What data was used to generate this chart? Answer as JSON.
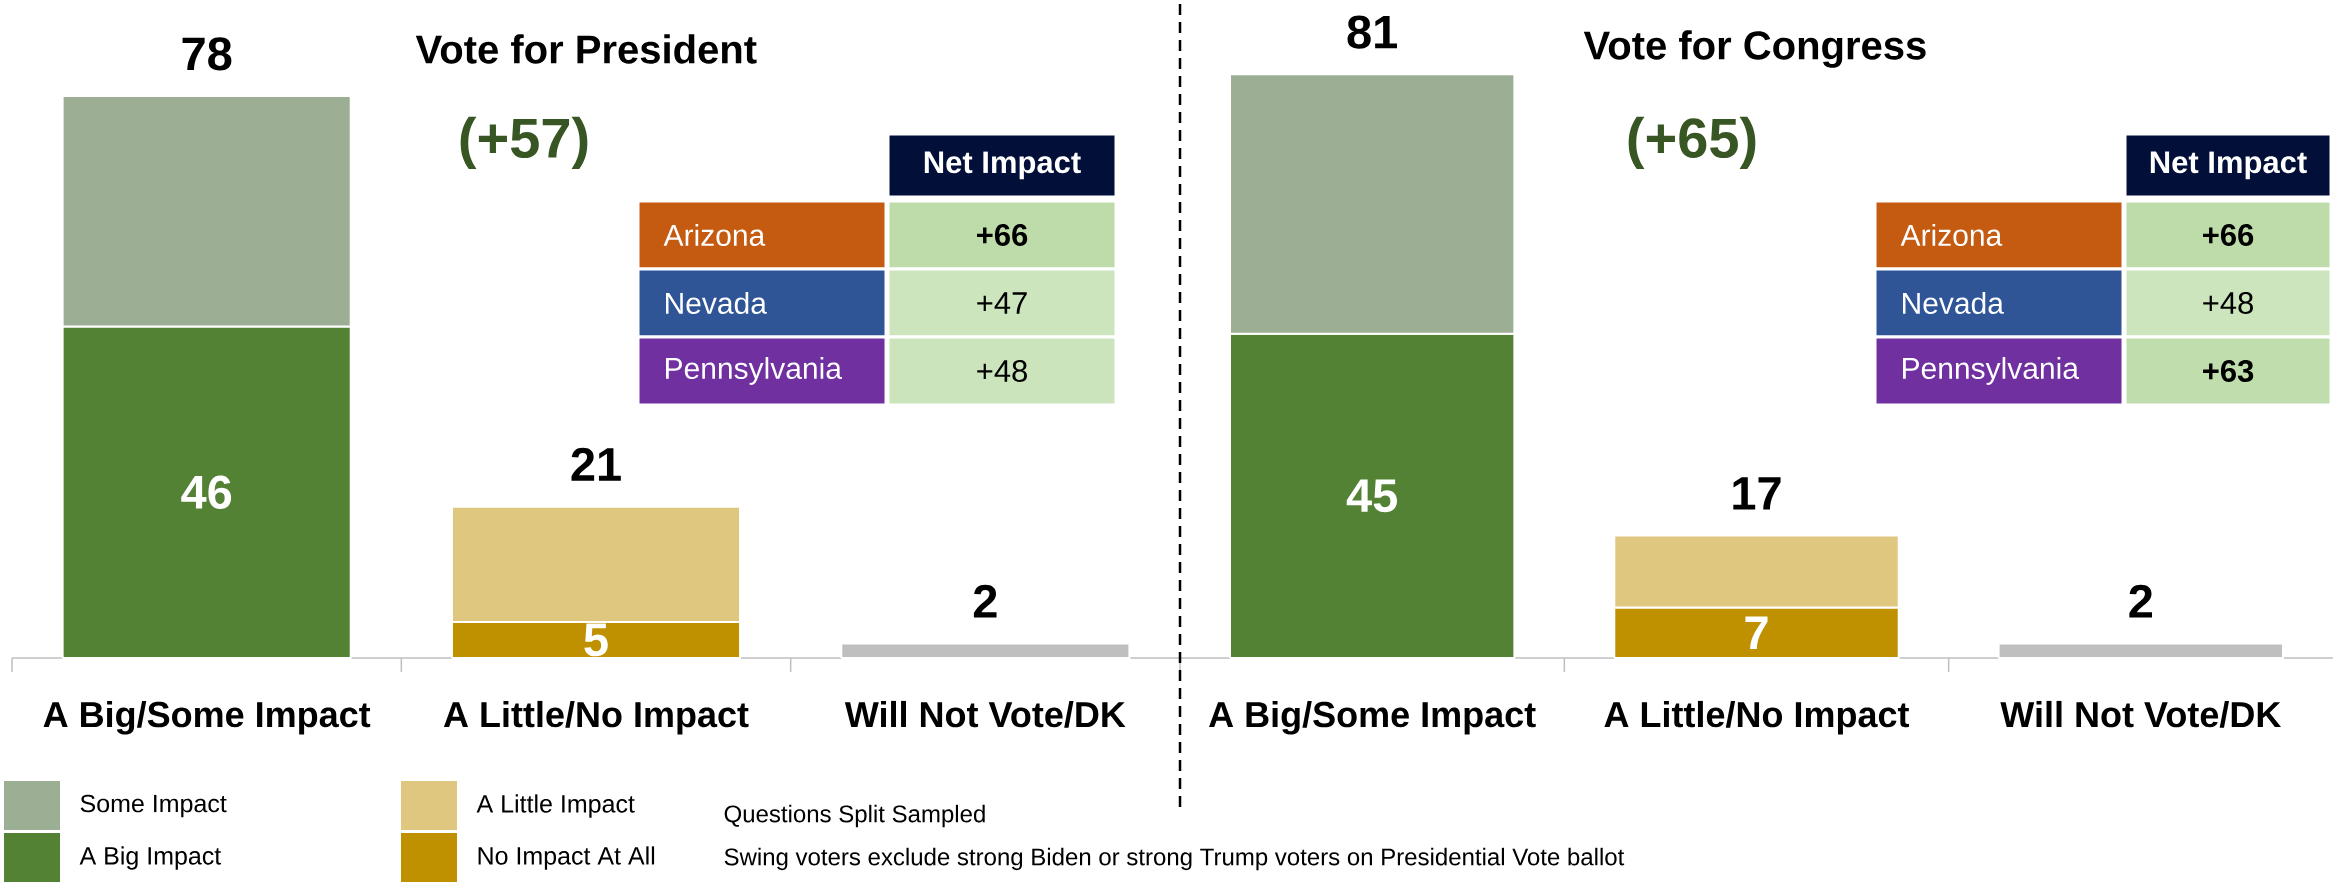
{
  "chart_data": [
    {
      "type": "bar",
      "title": "Vote for President",
      "categories": [
        "A Big/Some Impact",
        "A Little/No Impact",
        "Will Not Vote/DK"
      ],
      "stacked": true,
      "series": [
        {
          "name": "A Big Impact",
          "color": "#548235",
          "values": [
            46,
            null,
            null
          ],
          "value_labels": [
            "46",
            null,
            null
          ]
        },
        {
          "name": "Some Impact",
          "color": "#9caf94",
          "values": [
            32,
            null,
            null
          ]
        },
        {
          "name": "No Impact At All",
          "color": "#bf9000",
          "values": [
            null,
            5,
            null
          ],
          "value_labels": [
            null,
            "5",
            null
          ]
        },
        {
          "name": "A Little Impact",
          "color": "#dfc77f",
          "values": [
            null,
            16,
            null
          ]
        },
        {
          "color": "#bfbfbf",
          "values": [
            null,
            null,
            2
          ]
        }
      ],
      "totals": [
        "78",
        "21",
        "2"
      ],
      "tick_labels": "x",
      "legend": "bottom",
      "annotations": [
        "(+57)",
        "Questions Split Sampled",
        "Swing voters exclude strong Biden or strong Trump voters on Presidential Vote ballot"
      ]
    },
    {
      "type": "heatmap",
      "categories": [
        "Net Impact"
      ],
      "y_categories": [
        "Arizona",
        "Nevada",
        "Pennsylvania"
      ],
      "cells": [
        [
          66
        ],
        [
          47
        ],
        [
          48
        ]
      ],
      "cell_labels": [
        [
          "**+66**"
        ],
        [
          "+47"
        ],
        [
          "+48"
        ]
      ]
    },
    {
      "type": "bar",
      "title": "Vote for Congress",
      "categories": [
        "A Big/Some Impact",
        "A Little/No Impact",
        "Will Not Vote/DK"
      ],
      "stacked": true,
      "series": [
        {
          "color": "#548235",
          "values": [
            45,
            null,
            null
          ],
          "value_labels": [
            "45",
            null,
            null
          ]
        },
        {
          "color": "#9caf94",
          "values": [
            36,
            null,
            null
          ]
        },
        {
          "color": "#bf9000",
          "values": [
            null,
            7,
            null
          ],
          "value_labels": [
            null,
            "7",
            null
          ]
        },
        {
          "color": "#dfc77f",
          "values": [
            null,
            10,
            null
          ]
        },
        {
          "color": "#bfbfbf",
          "values": [
            null,
            null,
            2
          ]
        }
      ],
      "totals": [
        "81",
        "17",
        "2"
      ],
      "tick_labels": "x",
      "annotations": [
        "(+65)"
      ]
    },
    {
      "type": "heatmap",
      "categories": [
        "Net Impact"
      ],
      "y_categories": [
        "Arizona",
        "Nevada",
        "Pennsylvania"
      ],
      "cells": [
        [
          66
        ],
        [
          48
        ],
        [
          63
        ]
      ],
      "cell_labels": [
        [
          "**+66**"
        ],
        [
          "+48"
        ],
        [
          "**+63**"
        ]
      ]
    }
  ]
}
